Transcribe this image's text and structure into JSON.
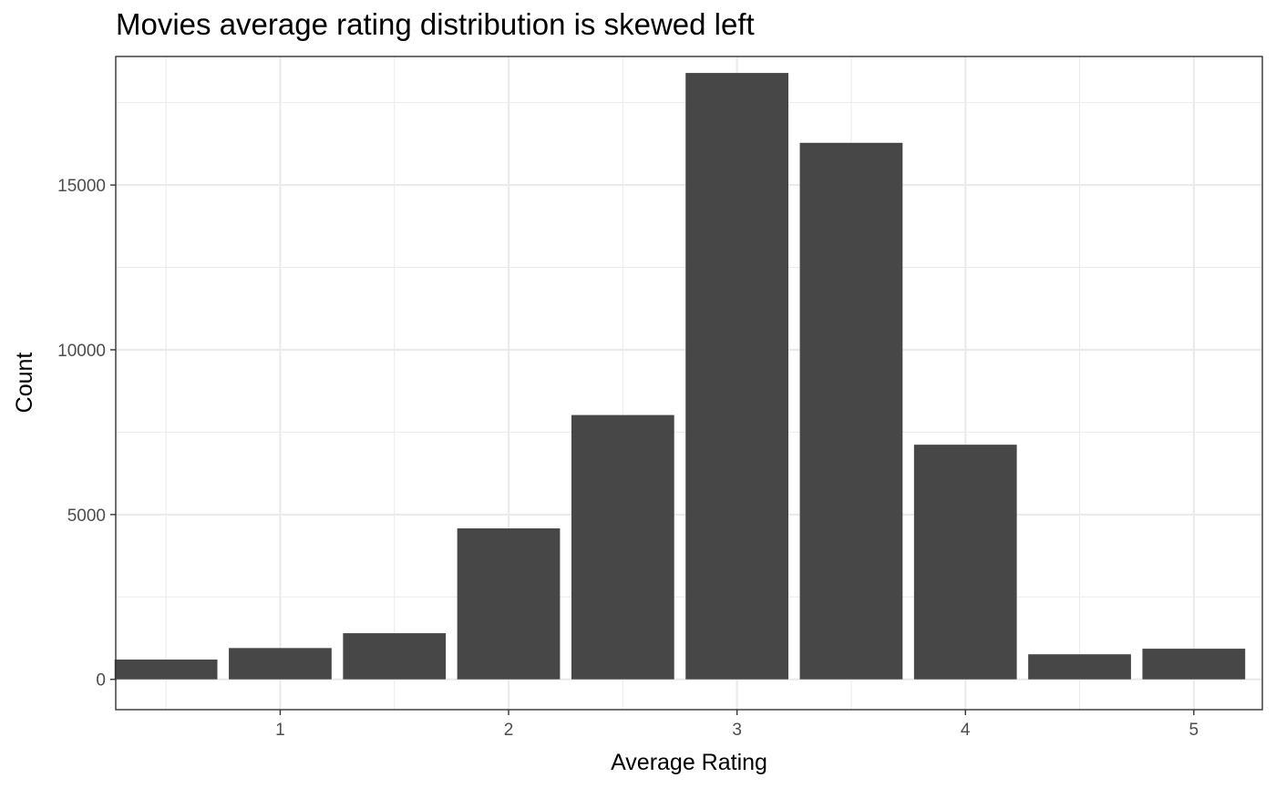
{
  "chart_data": {
    "type": "bar",
    "title": "Movies average rating distribution is skewed left",
    "xlabel": "Average Rating",
    "ylabel": "Count",
    "x": [
      0.5,
      1.0,
      1.5,
      2.0,
      2.5,
      3.0,
      3.5,
      4.0,
      4.5,
      5.0
    ],
    "values": [
      600,
      950,
      1400,
      4580,
      8020,
      18400,
      16280,
      7120,
      760,
      930
    ],
    "bin_width": 0.5,
    "xlim": [
      0.28,
      5.3
    ],
    "ylim": [
      -920,
      18900
    ],
    "xticks": [
      1,
      2,
      3,
      4,
      5
    ],
    "yticks": [
      0,
      5000,
      10000,
      15000
    ],
    "grid": true,
    "bar_color": "#474747",
    "grid_color": "#ebebeb",
    "panel_border_color": "#333333"
  }
}
